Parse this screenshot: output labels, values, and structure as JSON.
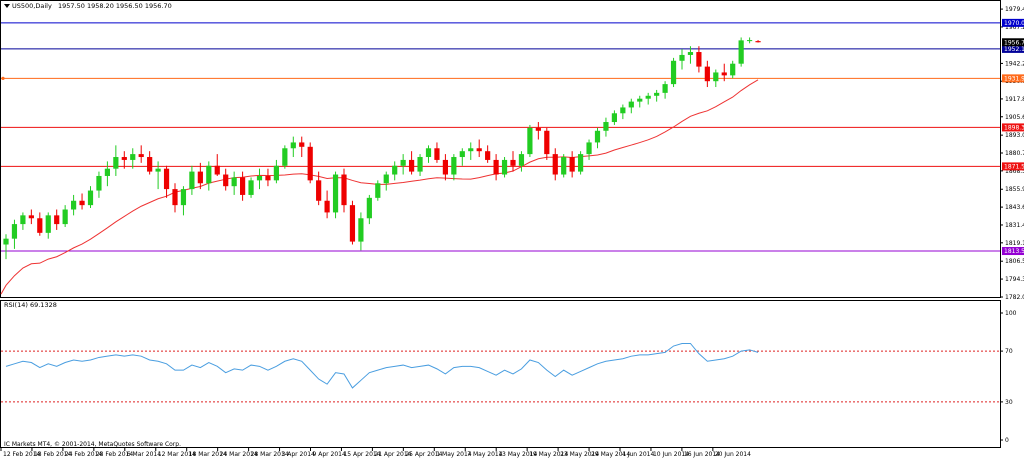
{
  "header": {
    "symbol": "US500,Daily",
    "ohlc": "1957.50 1958.20 1956.50 1956.70"
  },
  "price_axis": {
    "ticks": [
      "1979.45",
      "1967.20",
      "1942.20",
      "1930.00",
      "1917.85",
      "1905.60",
      "1893.00",
      "1880.75",
      "1868.50",
      "1855.90",
      "1843.65",
      "1831.40",
      "1819.15",
      "1806.55",
      "1794.30",
      "1782.00"
    ],
    "min": 1782.0,
    "max": 1985.0
  },
  "levels": [
    {
      "value": 1970.0,
      "label": "1970.00",
      "color": "#0000cc"
    },
    {
      "value": 1952.15,
      "label": "1952.15",
      "color": "#000099"
    },
    {
      "value": 1931.94,
      "label": "1931.94",
      "color": "#ff6a1a"
    },
    {
      "value": 1898.3,
      "label": "1898.30",
      "color": "#ee1111"
    },
    {
      "value": 1871.57,
      "label": "1871.57",
      "color": "#ee1111"
    },
    {
      "value": 1813.53,
      "label": "1813.53",
      "color": "#9400d3"
    }
  ],
  "current_price": {
    "value": 1956.7,
    "label": "1956.70"
  },
  "rsi": {
    "title": "RSI(14) 69.1328",
    "ticks": [
      "100",
      "70",
      "30",
      "0"
    ],
    "overbought": 70,
    "oversold": 30
  },
  "date_axis": {
    "labels": [
      "12 Feb 2014",
      "18 Feb 2014",
      "24 Feb 2014",
      "28 Feb 2014",
      "6 Mar 2014",
      "12 Mar 2014",
      "18 Mar 2014",
      "24 Mar 2014",
      "28 Mar 2014",
      "3 Apr 2014",
      "9 Apr 2014",
      "15 Apr 2014",
      "21 Apr 2014",
      "25 Apr 2014",
      "1 May 2014",
      "7 May 2014",
      "13 May 2014",
      "19 May 2014",
      "23 May 2014",
      "29 May 2014",
      "4 Jun 2014",
      "10 Jun 2014",
      "16 Jun 2014",
      "20 Jun 2014"
    ]
  },
  "copyright": "IC Markets MT4, © 2001-2014, MetaQuotes Software Corp.",
  "colors": {
    "bull": "#22cc22",
    "bear": "#ee0000",
    "ma": "#ee3333",
    "rsi_line": "#4a9ee0",
    "rsi_levels": "#dd2222"
  },
  "chart_data": {
    "type": "candlestick",
    "timeframe": "Daily",
    "candles": [
      [
        1818,
        1825,
        1808,
        1822
      ],
      [
        1822,
        1835,
        1815,
        1832
      ],
      [
        1832,
        1840,
        1828,
        1838
      ],
      [
        1838,
        1842,
        1832,
        1836
      ],
      [
        1836,
        1840,
        1824,
        1826
      ],
      [
        1826,
        1840,
        1822,
        1838
      ],
      [
        1838,
        1842,
        1828,
        1832
      ],
      [
        1832,
        1845,
        1830,
        1842
      ],
      [
        1842,
        1852,
        1838,
        1848
      ],
      [
        1848,
        1853,
        1842,
        1845
      ],
      [
        1845,
        1858,
        1843,
        1855
      ],
      [
        1855,
        1868,
        1850,
        1865
      ],
      [
        1865,
        1875,
        1858,
        1870
      ],
      [
        1870,
        1886,
        1865,
        1878
      ],
      [
        1878,
        1882,
        1870,
        1876
      ],
      [
        1876,
        1884,
        1870,
        1880
      ],
      [
        1880,
        1886,
        1874,
        1878
      ],
      [
        1878,
        1882,
        1866,
        1868
      ],
      [
        1868,
        1875,
        1856,
        1870
      ],
      [
        1870,
        1872,
        1850,
        1856
      ],
      [
        1856,
        1860,
        1840,
        1845
      ],
      [
        1845,
        1858,
        1838,
        1856
      ],
      [
        1856,
        1872,
        1852,
        1868
      ],
      [
        1868,
        1874,
        1856,
        1860
      ],
      [
        1860,
        1875,
        1855,
        1872
      ],
      [
        1872,
        1880,
        1865,
        1866
      ],
      [
        1866,
        1870,
        1855,
        1858
      ],
      [
        1858,
        1868,
        1852,
        1864
      ],
      [
        1864,
        1868,
        1848,
        1852
      ],
      [
        1852,
        1864,
        1850,
        1862
      ],
      [
        1862,
        1870,
        1856,
        1865
      ],
      [
        1865,
        1870,
        1858,
        1862
      ],
      [
        1862,
        1876,
        1860,
        1872
      ],
      [
        1872,
        1886,
        1870,
        1884
      ],
      [
        1884,
        1892,
        1878,
        1888
      ],
      [
        1888,
        1892,
        1878,
        1885
      ],
      [
        1885,
        1888,
        1860,
        1862
      ],
      [
        1862,
        1868,
        1845,
        1848
      ],
      [
        1848,
        1855,
        1836,
        1840
      ],
      [
        1840,
        1868,
        1836,
        1866
      ],
      [
        1866,
        1870,
        1840,
        1845
      ],
      [
        1845,
        1848,
        1818,
        1820
      ],
      [
        1820,
        1840,
        1814,
        1836
      ],
      [
        1836,
        1852,
        1832,
        1850
      ],
      [
        1850,
        1862,
        1848,
        1860
      ],
      [
        1860,
        1868,
        1855,
        1866
      ],
      [
        1866,
        1875,
        1862,
        1872
      ],
      [
        1872,
        1880,
        1866,
        1876
      ],
      [
        1876,
        1882,
        1866,
        1868
      ],
      [
        1868,
        1880,
        1865,
        1878
      ],
      [
        1878,
        1886,
        1874,
        1884
      ],
      [
        1884,
        1888,
        1874,
        1876
      ],
      [
        1876,
        1880,
        1862,
        1866
      ],
      [
        1866,
        1880,
        1862,
        1878
      ],
      [
        1878,
        1884,
        1872,
        1882
      ],
      [
        1882,
        1888,
        1876,
        1884
      ],
      [
        1884,
        1890,
        1878,
        1882
      ],
      [
        1882,
        1886,
        1874,
        1876
      ],
      [
        1876,
        1880,
        1862,
        1866
      ],
      [
        1866,
        1878,
        1864,
        1876
      ],
      [
        1876,
        1882,
        1868,
        1872
      ],
      [
        1872,
        1882,
        1868,
        1880
      ],
      [
        1880,
        1900,
        1878,
        1898
      ],
      [
        1898,
        1902,
        1890,
        1896
      ],
      [
        1896,
        1898,
        1876,
        1880
      ],
      [
        1880,
        1884,
        1862,
        1866
      ],
      [
        1866,
        1880,
        1864,
        1878
      ],
      [
        1878,
        1882,
        1864,
        1868
      ],
      [
        1868,
        1882,
        1866,
        1880
      ],
      [
        1880,
        1890,
        1876,
        1888
      ],
      [
        1888,
        1898,
        1884,
        1896
      ],
      [
        1896,
        1905,
        1892,
        1902
      ],
      [
        1902,
        1910,
        1900,
        1908
      ],
      [
        1908,
        1914,
        1904,
        1912
      ],
      [
        1912,
        1918,
        1908,
        1916
      ],
      [
        1916,
        1920,
        1912,
        1918
      ],
      [
        1918,
        1922,
        1914,
        1920
      ],
      [
        1920,
        1924,
        1916,
        1922
      ],
      [
        1922,
        1930,
        1918,
        1928
      ],
      [
        1928,
        1946,
        1926,
        1944
      ],
      [
        1944,
        1952,
        1938,
        1948
      ],
      [
        1948,
        1954,
        1942,
        1950
      ],
      [
        1950,
        1954,
        1936,
        1940
      ],
      [
        1940,
        1944,
        1926,
        1930
      ],
      [
        1930,
        1938,
        1926,
        1936
      ],
      [
        1936,
        1942,
        1930,
        1934
      ],
      [
        1934,
        1944,
        1932,
        1942
      ],
      [
        1942,
        1960,
        1940,
        1958
      ],
      [
        1957.5,
        1960,
        1956,
        1958.2
      ],
      [
        1957.5,
        1958.2,
        1956.5,
        1956.7
      ]
    ],
    "ma_period": 20,
    "rsi_values": [
      58,
      60,
      62,
      61,
      57,
      60,
      58,
      61,
      63,
      62,
      63,
      65,
      66,
      67,
      66,
      67,
      66,
      63,
      62,
      60,
      55,
      55,
      59,
      57,
      61,
      58,
      53,
      56,
      55,
      59,
      58,
      55,
      58,
      62,
      64,
      62,
      55,
      48,
      44,
      53,
      52,
      41,
      47,
      53,
      55,
      57,
      58,
      59,
      57,
      58,
      59,
      56,
      52,
      57,
      58,
      58,
      57,
      54,
      51,
      55,
      52,
      56,
      63,
      61,
      55,
      50,
      55,
      51,
      54,
      57,
      60,
      62,
      63,
      64,
      66,
      67,
      67,
      68,
      69,
      74,
      76,
      76,
      68,
      62,
      63,
      64,
      66,
      70,
      71,
      69
    ]
  }
}
